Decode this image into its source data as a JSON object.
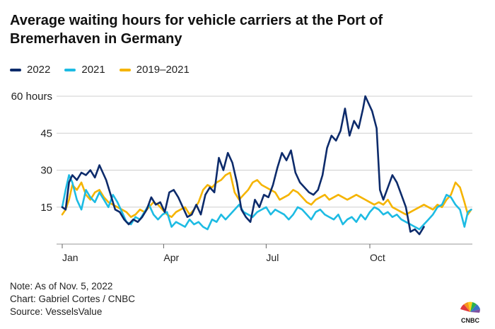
{
  "header": {
    "title": "Average waiting hours for vehicle carriers at the Port of Bremerhaven in Germany"
  },
  "footer": {
    "note": "Note: As of Nov. 5, 2022",
    "credit": "Chart: Gabriel Cortes / CNBC",
    "source": "Source: VesselsValue"
  },
  "logo": {
    "text": "CNBC"
  },
  "chart_data": {
    "type": "line",
    "title": "Average waiting hours for vehicle carriers at the Port of Bremerhaven in Germany",
    "xlabel": "",
    "ylabel": "",
    "x_unit": "day of year",
    "xlim": [
      1,
      365
    ],
    "ylim": [
      0,
      62
    ],
    "grid": "horizontal",
    "legend_position": "top-left",
    "x_ticks": [
      {
        "x": 1,
        "label": "Jan"
      },
      {
        "x": 91,
        "label": "Apr"
      },
      {
        "x": 182,
        "label": "Jul"
      },
      {
        "x": 274,
        "label": "Oct"
      }
    ],
    "y_ticks": [
      {
        "y": 15,
        "label": "15"
      },
      {
        "y": 30,
        "label": "30"
      },
      {
        "y": 45,
        "label": "45"
      },
      {
        "y": 60,
        "label": "60 hours"
      }
    ],
    "series": [
      {
        "name": "2022",
        "color": "#0d2b6b",
        "points": [
          [
            1,
            15
          ],
          [
            4,
            14
          ],
          [
            7,
            25
          ],
          [
            10,
            28
          ],
          [
            14,
            26
          ],
          [
            18,
            29
          ],
          [
            22,
            28
          ],
          [
            26,
            30
          ],
          [
            30,
            27
          ],
          [
            34,
            32
          ],
          [
            37,
            29
          ],
          [
            40,
            26
          ],
          [
            44,
            20
          ],
          [
            48,
            14
          ],
          [
            52,
            13
          ],
          [
            56,
            10
          ],
          [
            60,
            8
          ],
          [
            64,
            10
          ],
          [
            68,
            9
          ],
          [
            72,
            11
          ],
          [
            76,
            14
          ],
          [
            80,
            19
          ],
          [
            84,
            16
          ],
          [
            88,
            17
          ],
          [
            92,
            13
          ],
          [
            96,
            21
          ],
          [
            100,
            22
          ],
          [
            104,
            19
          ],
          [
            108,
            15
          ],
          [
            112,
            11
          ],
          [
            116,
            12
          ],
          [
            120,
            16
          ],
          [
            124,
            12
          ],
          [
            128,
            20
          ],
          [
            132,
            23
          ],
          [
            136,
            21
          ],
          [
            140,
            35
          ],
          [
            144,
            30
          ],
          [
            148,
            37
          ],
          [
            152,
            33
          ],
          [
            156,
            25
          ],
          [
            160,
            14
          ],
          [
            164,
            11
          ],
          [
            168,
            9
          ],
          [
            172,
            18
          ],
          [
            176,
            15
          ],
          [
            180,
            20
          ],
          [
            184,
            19
          ],
          [
            188,
            24
          ],
          [
            192,
            31
          ],
          [
            196,
            37
          ],
          [
            200,
            34
          ],
          [
            204,
            38
          ],
          [
            208,
            29
          ],
          [
            212,
            25
          ],
          [
            216,
            23
          ],
          [
            220,
            21
          ],
          [
            224,
            20
          ],
          [
            228,
            22
          ],
          [
            232,
            28
          ],
          [
            236,
            39
          ],
          [
            240,
            44
          ],
          [
            244,
            42
          ],
          [
            248,
            46
          ],
          [
            252,
            55
          ],
          [
            256,
            44
          ],
          [
            260,
            50
          ],
          [
            264,
            47
          ],
          [
            268,
            55
          ],
          [
            270,
            60
          ],
          [
            273,
            57
          ],
          [
            276,
            54
          ],
          [
            280,
            47
          ],
          [
            283,
            22
          ],
          [
            286,
            18
          ],
          [
            290,
            23
          ],
          [
            294,
            28
          ],
          [
            298,
            25
          ],
          [
            302,
            20
          ],
          [
            306,
            15
          ],
          [
            310,
            5
          ],
          [
            314,
            6
          ],
          [
            318,
            4
          ],
          [
            322,
            7
          ]
        ]
      },
      {
        "name": "2021",
        "color": "#1dbbe3",
        "points": [
          [
            1,
            15
          ],
          [
            4,
            22
          ],
          [
            7,
            28
          ],
          [
            10,
            25
          ],
          [
            14,
            18
          ],
          [
            18,
            14
          ],
          [
            22,
            22
          ],
          [
            26,
            19
          ],
          [
            30,
            17
          ],
          [
            34,
            21
          ],
          [
            38,
            18
          ],
          [
            42,
            15
          ],
          [
            46,
            20
          ],
          [
            50,
            17
          ],
          [
            54,
            13
          ],
          [
            58,
            9
          ],
          [
            62,
            8
          ],
          [
            66,
            11
          ],
          [
            70,
            10
          ],
          [
            74,
            13
          ],
          [
            78,
            16
          ],
          [
            82,
            12
          ],
          [
            86,
            10
          ],
          [
            90,
            12
          ],
          [
            94,
            13
          ],
          [
            98,
            7
          ],
          [
            102,
            9
          ],
          [
            106,
            8
          ],
          [
            110,
            7
          ],
          [
            114,
            10
          ],
          [
            118,
            8
          ],
          [
            122,
            9
          ],
          [
            126,
            7
          ],
          [
            130,
            6
          ],
          [
            134,
            10
          ],
          [
            138,
            9
          ],
          [
            142,
            12
          ],
          [
            146,
            10
          ],
          [
            150,
            12
          ],
          [
            154,
            14
          ],
          [
            158,
            16
          ],
          [
            162,
            13
          ],
          [
            166,
            12
          ],
          [
            170,
            11
          ],
          [
            174,
            13
          ],
          [
            178,
            14
          ],
          [
            182,
            15
          ],
          [
            186,
            12
          ],
          [
            190,
            14
          ],
          [
            194,
            13
          ],
          [
            198,
            12
          ],
          [
            202,
            10
          ],
          [
            206,
            12
          ],
          [
            210,
            15
          ],
          [
            214,
            14
          ],
          [
            218,
            12
          ],
          [
            222,
            10
          ],
          [
            226,
            13
          ],
          [
            230,
            14
          ],
          [
            234,
            12
          ],
          [
            238,
            11
          ],
          [
            242,
            10
          ],
          [
            246,
            12
          ],
          [
            250,
            8
          ],
          [
            254,
            10
          ],
          [
            258,
            11
          ],
          [
            262,
            9
          ],
          [
            266,
            12
          ],
          [
            270,
            10
          ],
          [
            274,
            13
          ],
          [
            278,
            15
          ],
          [
            282,
            14
          ],
          [
            286,
            12
          ],
          [
            290,
            13
          ],
          [
            294,
            11
          ],
          [
            298,
            12
          ],
          [
            302,
            10
          ],
          [
            306,
            9
          ],
          [
            310,
            8
          ],
          [
            314,
            7
          ],
          [
            318,
            6
          ],
          [
            322,
            8
          ],
          [
            326,
            10
          ],
          [
            330,
            12
          ],
          [
            334,
            15
          ],
          [
            338,
            16
          ],
          [
            342,
            20
          ],
          [
            346,
            19
          ],
          [
            350,
            16
          ],
          [
            354,
            14
          ],
          [
            358,
            7
          ],
          [
            361,
            13
          ],
          [
            364,
            14
          ]
        ]
      },
      {
        "name": "2019–2021",
        "color": "#f5b400",
        "points": [
          [
            1,
            12
          ],
          [
            4,
            14
          ],
          [
            7,
            18
          ],
          [
            10,
            24
          ],
          [
            14,
            22
          ],
          [
            18,
            25
          ],
          [
            22,
            20
          ],
          [
            26,
            18
          ],
          [
            30,
            21
          ],
          [
            34,
            22
          ],
          [
            38,
            19
          ],
          [
            42,
            17
          ],
          [
            46,
            16
          ],
          [
            50,
            15
          ],
          [
            54,
            14
          ],
          [
            58,
            13
          ],
          [
            62,
            11
          ],
          [
            66,
            12
          ],
          [
            70,
            14
          ],
          [
            74,
            13
          ],
          [
            78,
            15
          ],
          [
            82,
            17
          ],
          [
            86,
            16
          ],
          [
            90,
            14
          ],
          [
            94,
            12
          ],
          [
            98,
            11
          ],
          [
            102,
            13
          ],
          [
            106,
            14
          ],
          [
            110,
            15
          ],
          [
            114,
            12
          ],
          [
            118,
            14
          ],
          [
            122,
            17
          ],
          [
            126,
            22
          ],
          [
            130,
            24
          ],
          [
            134,
            23
          ],
          [
            138,
            25
          ],
          [
            142,
            26
          ],
          [
            146,
            28
          ],
          [
            150,
            29
          ],
          [
            154,
            21
          ],
          [
            158,
            18
          ],
          [
            162,
            20
          ],
          [
            166,
            22
          ],
          [
            170,
            25
          ],
          [
            174,
            26
          ],
          [
            178,
            24
          ],
          [
            182,
            23
          ],
          [
            186,
            22
          ],
          [
            190,
            21
          ],
          [
            194,
            18
          ],
          [
            198,
            19
          ],
          [
            202,
            20
          ],
          [
            206,
            22
          ],
          [
            210,
            21
          ],
          [
            214,
            19
          ],
          [
            218,
            17
          ],
          [
            222,
            16
          ],
          [
            226,
            18
          ],
          [
            230,
            19
          ],
          [
            234,
            20
          ],
          [
            238,
            18
          ],
          [
            242,
            19
          ],
          [
            246,
            20
          ],
          [
            250,
            19
          ],
          [
            254,
            18
          ],
          [
            258,
            19
          ],
          [
            262,
            20
          ],
          [
            266,
            19
          ],
          [
            270,
            18
          ],
          [
            274,
            17
          ],
          [
            278,
            16
          ],
          [
            282,
            17
          ],
          [
            286,
            16
          ],
          [
            290,
            18
          ],
          [
            294,
            15
          ],
          [
            298,
            14
          ],
          [
            302,
            13
          ],
          [
            306,
            12
          ],
          [
            310,
            13
          ],
          [
            314,
            14
          ],
          [
            318,
            15
          ],
          [
            322,
            16
          ],
          [
            326,
            15
          ],
          [
            330,
            14
          ],
          [
            334,
            16
          ],
          [
            338,
            15
          ],
          [
            342,
            18
          ],
          [
            346,
            20
          ],
          [
            350,
            25
          ],
          [
            354,
            23
          ],
          [
            358,
            17
          ],
          [
            361,
            12
          ],
          [
            364,
            14
          ]
        ]
      }
    ]
  }
}
